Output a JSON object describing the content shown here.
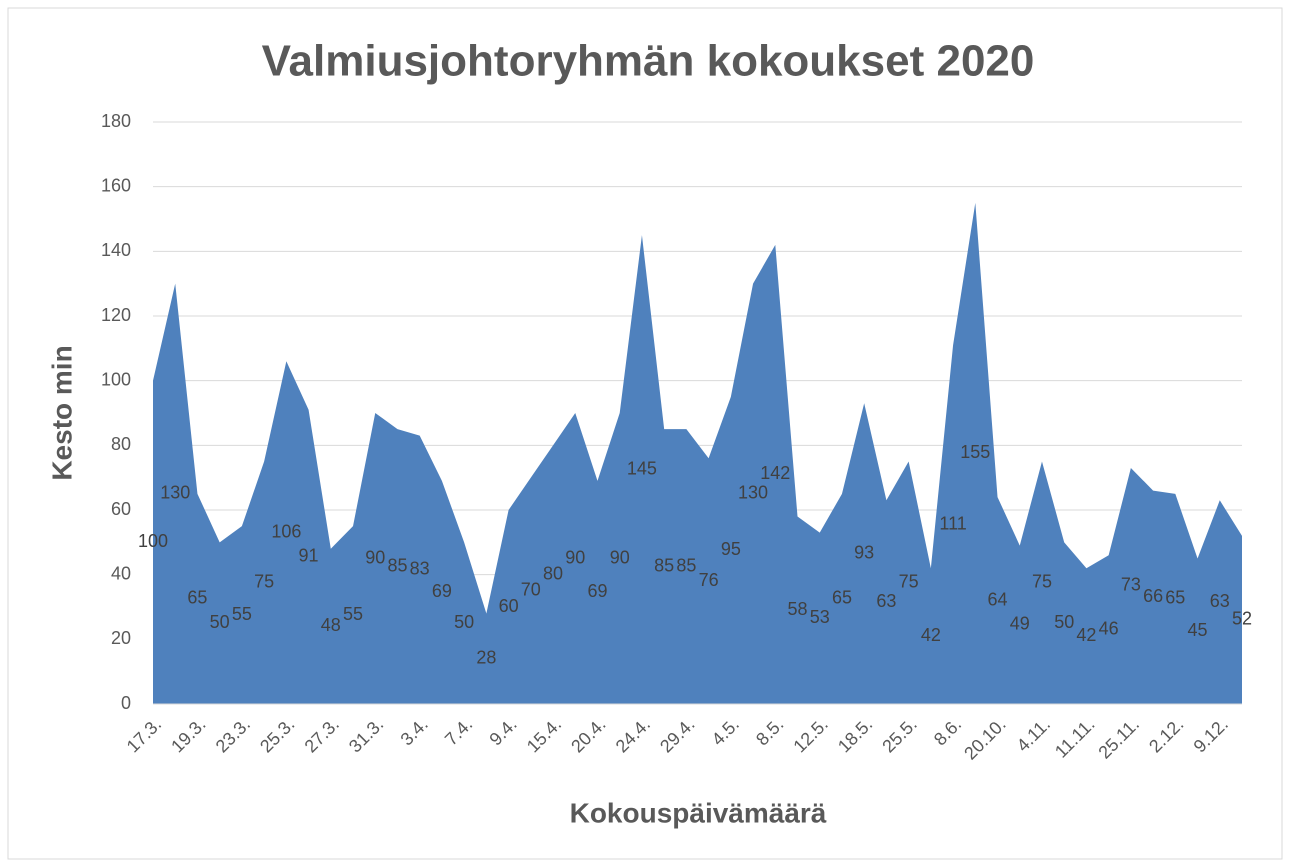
{
  "chart_data": {
    "type": "area",
    "title": "Valmiusjohtoryhmän kokoukset 2020",
    "x_label": "Kokouspäivämäärä",
    "y_label": "Kesto min",
    "categories": [
      "17.3.",
      null,
      "19.3.",
      null,
      "23.3.",
      null,
      "25.3.",
      null,
      "27.3.",
      null,
      "31.3.",
      null,
      "3.4.",
      null,
      "7.4.",
      null,
      "9.4.",
      null,
      "15.4.",
      null,
      "20.4.",
      null,
      "24.4.",
      null,
      "29.4.",
      null,
      "4.5.",
      null,
      "8.5.",
      null,
      "12.5.",
      null,
      "18.5.",
      null,
      "25.5.",
      null,
      "8.6.",
      null,
      "20.10.",
      null,
      "4.11.",
      null,
      "11.11.",
      null,
      "25.11.",
      null,
      "2.12.",
      null,
      "9.12.",
      null
    ],
    "values": [
      100,
      130,
      65,
      50,
      55,
      75,
      106,
      91,
      48,
      55,
      90,
      85,
      83,
      69,
      50,
      28,
      60,
      70,
      80,
      90,
      69,
      90,
      145,
      85,
      85,
      76,
      95,
      130,
      142,
      58,
      53,
      65,
      93,
      63,
      75,
      42,
      111,
      155,
      64,
      49,
      75,
      50,
      42,
      46,
      73,
      66,
      65,
      45,
      63,
      52
    ],
    "color": "#4f81bd",
    "ylim": [
      0,
      180
    ],
    "yticks": [
      0,
      20,
      40,
      60,
      80,
      100,
      120,
      140,
      160,
      180
    ],
    "grid": true
  }
}
